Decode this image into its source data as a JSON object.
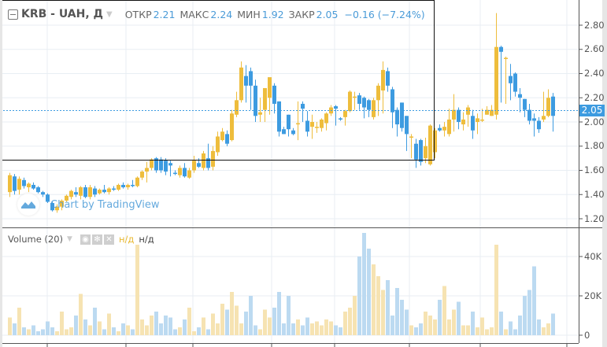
{
  "header": {
    "symbol": "KRB - UAH, Д",
    "open_label": "ОТКР",
    "open": "2.21",
    "high_label": "МАКС",
    "high": "2.24",
    "low_label": "МИН",
    "low": "1.92",
    "close_label": "ЗАКР",
    "close": "2.05",
    "change": "−0.16 (−7.24%)"
  },
  "volume_legend": {
    "title": "Volume (20)",
    "value1": "н/д",
    "value2": "н/д",
    "icons": [
      "eye-icon",
      "gear-icon",
      "close-icon"
    ]
  },
  "watermark": "Chart by TradingView",
  "colors": {
    "up": "#eebd3c",
    "down": "#3d9be0",
    "up_volume": "#f6e3b2",
    "down_volume": "#bcdaf1",
    "value_text": "#4a9bd8"
  },
  "chart_data": {
    "type": "candlestick",
    "price_axis": {
      "ticks": [
        "2.80",
        "2.60",
        "2.40",
        "2.20",
        "2.00",
        "1.80",
        "1.60",
        "1.40",
        "1.20"
      ],
      "range": [
        1.12,
        2.98
      ],
      "last_price": "2.05"
    },
    "volume_axis": {
      "ticks": [
        "40K",
        "20K",
        "0"
      ],
      "range": [
        0,
        60000
      ]
    },
    "grid": true,
    "ohlcv": [
      [
        1.42,
        1.58,
        1.38,
        1.56,
        9
      ],
      [
        1.55,
        1.57,
        1.4,
        1.43,
        6
      ],
      [
        1.44,
        1.55,
        1.4,
        1.53,
        14
      ],
      [
        1.52,
        1.54,
        1.45,
        1.47,
        4
      ],
      [
        1.46,
        1.5,
        1.42,
        1.49,
        3
      ],
      [
        1.48,
        1.5,
        1.44,
        1.45,
        5
      ],
      [
        1.46,
        1.47,
        1.41,
        1.42,
        2
      ],
      [
        1.42,
        1.43,
        1.38,
        1.4,
        3
      ],
      [
        1.4,
        1.41,
        1.33,
        1.34,
        7
      ],
      [
        1.33,
        1.34,
        1.26,
        1.27,
        4
      ],
      [
        1.27,
        1.32,
        1.25,
        1.3,
        2
      ],
      [
        1.3,
        1.36,
        1.27,
        1.35,
        12
      ],
      [
        1.35,
        1.4,
        1.34,
        1.39,
        3
      ],
      [
        1.38,
        1.44,
        1.36,
        1.43,
        4
      ],
      [
        1.42,
        1.46,
        1.38,
        1.4,
        10
      ],
      [
        1.39,
        1.47,
        1.36,
        1.46,
        21
      ],
      [
        1.46,
        1.48,
        1.37,
        1.38,
        8
      ],
      [
        1.38,
        1.48,
        1.36,
        1.46,
        5
      ],
      [
        1.45,
        1.47,
        1.38,
        1.4,
        14
      ],
      [
        1.41,
        1.45,
        1.4,
        1.44,
        7
      ],
      [
        1.44,
        1.48,
        1.41,
        1.42,
        3
      ],
      [
        1.42,
        1.46,
        1.4,
        1.45,
        11
      ],
      [
        1.45,
        1.47,
        1.43,
        1.44,
        4
      ],
      [
        1.44,
        1.49,
        1.43,
        1.48,
        2
      ],
      [
        1.48,
        1.5,
        1.45,
        1.46,
        6
      ],
      [
        1.46,
        1.49,
        1.44,
        1.48,
        5
      ],
      [
        1.48,
        1.52,
        1.46,
        1.47,
        3
      ],
      [
        1.47,
        1.55,
        1.46,
        1.54,
        46
      ],
      [
        1.54,
        1.6,
        1.52,
        1.59,
        8
      ],
      [
        1.59,
        1.67,
        1.5,
        1.62,
        5
      ],
      [
        1.62,
        1.7,
        1.6,
        1.69,
        10
      ],
      [
        1.7,
        1.71,
        1.58,
        1.6,
        12
      ],
      [
        1.69,
        1.71,
        1.58,
        1.6,
        6
      ],
      [
        1.68,
        1.7,
        1.56,
        1.59,
        10
      ],
      [
        1.66,
        1.68,
        1.55,
        1.64,
        9
      ],
      [
        1.58,
        1.6,
        1.56,
        1.57,
        3
      ],
      [
        1.56,
        1.64,
        1.54,
        1.62,
        4
      ],
      [
        1.62,
        1.66,
        1.54,
        1.55,
        8
      ],
      [
        1.54,
        1.62,
        1.53,
        1.6,
        14
      ],
      [
        1.6,
        1.72,
        1.58,
        1.68,
        2
      ],
      [
        1.66,
        1.7,
        1.62,
        1.63,
        4
      ],
      [
        1.62,
        1.76,
        1.6,
        1.74,
        9
      ],
      [
        1.7,
        1.82,
        1.6,
        1.62,
        3
      ],
      [
        1.63,
        1.8,
        1.6,
        1.76,
        11
      ],
      [
        1.75,
        1.92,
        1.72,
        1.88,
        6
      ],
      [
        1.85,
        1.95,
        1.84,
        1.92,
        16
      ],
      [
        1.9,
        1.93,
        1.8,
        1.82,
        13
      ],
      [
        1.85,
        2.1,
        1.84,
        2.07,
        22
      ],
      [
        2.06,
        2.25,
        2.04,
        2.18,
        15
      ],
      [
        2.18,
        2.5,
        2.16,
        2.45,
        6
      ],
      [
        2.38,
        2.47,
        2.16,
        2.3,
        12
      ],
      [
        2.42,
        2.45,
        2.1,
        2.3,
        20
      ],
      [
        2.3,
        2.35,
        2.0,
        2.05,
        5
      ],
      [
        2.06,
        2.2,
        2.0,
        2.08,
        3
      ],
      [
        2.1,
        2.26,
        2.0,
        2.28,
        13
      ],
      [
        2.2,
        2.36,
        2.06,
        2.37,
        9
      ],
      [
        2.3,
        2.32,
        2.07,
        2.15,
        14
      ],
      [
        2.17,
        2.17,
        1.88,
        1.92,
        22
      ],
      [
        1.94,
        1.96,
        1.9,
        1.9,
        6
      ],
      [
        2.06,
        2.06,
        1.88,
        1.94,
        20
      ],
      [
        1.93,
        1.95,
        1.89,
        1.9,
        6
      ],
      [
        1.98,
        2.17,
        1.85,
        1.99,
        8
      ],
      [
        2.15,
        2.17,
        2.0,
        2.11,
        5
      ],
      [
        2.01,
        2.09,
        1.88,
        1.92,
        9
      ],
      [
        1.96,
        2.06,
        1.86,
        2.0,
        6
      ],
      [
        1.95,
        2.0,
        1.91,
        1.96,
        7
      ],
      [
        1.95,
        2.03,
        1.92,
        2.02,
        5
      ],
      [
        1.99,
        2.08,
        1.93,
        2.07,
        8
      ],
      [
        2.07,
        2.14,
        2.05,
        2.12,
        7
      ],
      [
        2.13,
        2.14,
        1.97,
        2.11,
        5
      ],
      [
        2.03,
        2.04,
        2.01,
        2.02,
        4
      ],
      [
        2.04,
        2.1,
        1.97,
        2.09,
        12
      ],
      [
        2.09,
        2.26,
        2.08,
        2.25,
        14
      ],
      [
        2.2,
        2.25,
        2.1,
        2.21,
        20
      ],
      [
        2.22,
        2.24,
        2.1,
        2.15,
        40
      ],
      [
        2.2,
        2.21,
        2.03,
        2.12,
        52
      ],
      [
        2.18,
        2.19,
        2.04,
        2.1,
        44
      ],
      [
        2.04,
        2.2,
        2.02,
        2.18,
        36
      ],
      [
        2.18,
        2.32,
        2.05,
        2.3,
        30
      ],
      [
        2.26,
        2.5,
        2.07,
        2.43,
        23
      ],
      [
        2.42,
        2.45,
        2.25,
        2.3,
        28
      ],
      [
        2.27,
        2.29,
        1.95,
        2.08,
        10
      ],
      [
        2.1,
        2.12,
        1.88,
        1.98,
        24
      ],
      [
        2.16,
        2.16,
        1.92,
        1.95,
        18
      ],
      [
        2.05,
        2.05,
        1.76,
        1.9,
        13
      ],
      [
        1.87,
        1.9,
        1.7,
        1.88,
        5
      ],
      [
        1.82,
        1.86,
        1.62,
        1.69,
        4
      ],
      [
        1.85,
        1.86,
        1.64,
        1.67,
        6
      ],
      [
        1.7,
        1.87,
        1.66,
        1.8,
        12
      ],
      [
        1.65,
        1.98,
        1.64,
        1.97,
        10
      ],
      [
        1.75,
        1.95,
        1.7,
        1.93,
        8
      ],
      [
        1.95,
        1.98,
        1.92,
        1.93,
        18
      ],
      [
        1.93,
        2.0,
        1.88,
        1.96,
        25
      ],
      [
        1.9,
        2.11,
        1.88,
        2.02,
        8
      ],
      [
        2.02,
        2.23,
        1.92,
        2.1,
        13
      ],
      [
        2.1,
        2.12,
        1.94,
        2.0,
        17
      ],
      [
        1.98,
        2.08,
        1.93,
        2.02,
        5
      ],
      [
        2.06,
        2.14,
        1.96,
        2.12,
        5
      ],
      [
        2.05,
        2.1,
        1.86,
        1.93,
        12
      ],
      [
        2.0,
        2.07,
        1.9,
        2.03,
        4
      ],
      [
        2.01,
        2.11,
        2.0,
        2.02,
        9
      ],
      [
        2.06,
        2.13,
        2.06,
        2.1,
        3
      ],
      [
        2.05,
        2.14,
        2.05,
        2.1,
        4
      ],
      [
        2.06,
        2.9,
        2.02,
        2.62,
        46
      ],
      [
        2.62,
        2.63,
        2.16,
        2.58,
        12
      ],
      [
        2.53,
        2.54,
        2.15,
        2.53,
        3
      ],
      [
        2.38,
        2.48,
        2.18,
        2.32,
        7
      ],
      [
        2.4,
        2.41,
        2.21,
        2.25,
        3
      ],
      [
        2.23,
        2.28,
        2.08,
        2.2,
        10
      ],
      [
        2.19,
        2.19,
        2.04,
        2.1,
        20
      ],
      [
        2.1,
        2.15,
        1.98,
        2.01,
        23
      ],
      [
        2.03,
        2.07,
        1.88,
        2.01,
        35
      ],
      [
        2.01,
        2.04,
        1.91,
        1.94,
        8
      ],
      [
        2.02,
        2.25,
        2.0,
        2.05,
        4
      ],
      [
        2.05,
        2.27,
        2.04,
        2.2,
        6
      ],
      [
        2.21,
        2.24,
        1.92,
        2.05,
        11
      ]
    ]
  }
}
